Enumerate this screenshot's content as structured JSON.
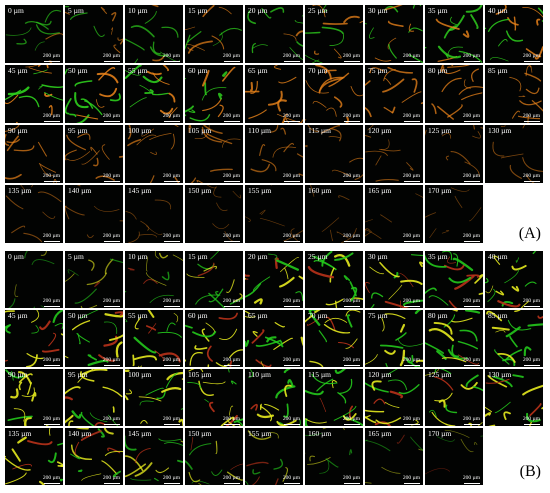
{
  "panels": [
    {
      "id": "A",
      "label": "(A)",
      "scale_label": "200 µm",
      "depths": [
        "0 µm",
        "5 µm",
        "10 µm",
        "15 µm",
        "20 µm",
        "25 µm",
        "30 µm",
        "35 µm",
        "40 µm",
        "45 µm",
        "50 µm",
        "55 µm",
        "60 µm",
        "65 µm",
        "70 µm",
        "75 µm",
        "80 µm",
        "85 µm",
        "90 µm",
        "95 µm",
        "100 µm",
        "105 µm",
        "110 µm",
        "115 µm",
        "120 µm",
        "125 µm",
        "130 µm",
        "135 µm",
        "140 µm",
        "145 µm",
        "150 µm",
        "155 µm",
        "160 µm",
        "165 µm",
        "170 µm"
      ],
      "colors": {
        "green": "#2fd41e",
        "orange": "#e8821a",
        "yellow": "#d8e02a"
      }
    },
    {
      "id": "B",
      "label": "(B)",
      "scale_label": "200 µm",
      "depths": [
        "0 µm",
        "5 µm",
        "10 µm",
        "15 µm",
        "20 µm",
        "25 µm",
        "30 µm",
        "35 µm",
        "40 µm",
        "45 µm",
        "50 µm",
        "55 µm",
        "60 µm",
        "65 µm",
        "70 µm",
        "75 µm",
        "80 µm",
        "85 µm",
        "90 µm",
        "95 µm",
        "100 µm",
        "105 µm",
        "110 µm",
        "115 µm",
        "120 µm",
        "125 µm",
        "130 µm",
        "135 µm",
        "140 µm",
        "145 µm",
        "150 µm",
        "155 µm",
        "160 µm",
        "165 µm",
        "170 µm"
      ],
      "colors": {
        "green": "#24c81c",
        "yellow": "#e6ea1e",
        "red": "#b8321a"
      }
    }
  ]
}
